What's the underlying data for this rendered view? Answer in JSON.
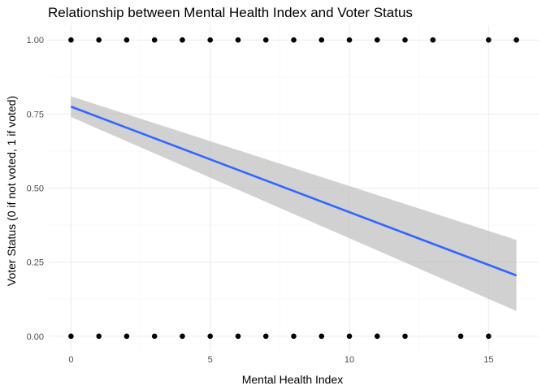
{
  "chart_data": {
    "type": "scatter",
    "title": "Relationship between Mental Health Index and Voter Status",
    "xlabel": "Mental Health Index",
    "ylabel": "Voter Status (0 if not voted, 1 if voted)",
    "xlim": [
      -0.8,
      16.8
    ],
    "ylim": [
      -0.05,
      1.05
    ],
    "x_ticks": [
      0,
      5,
      10,
      15
    ],
    "x_tick_labels": [
      "0",
      "5",
      "10",
      "15"
    ],
    "y_ticks": [
      0,
      0.25,
      0.5,
      0.75,
      1
    ],
    "y_tick_labels": [
      "0.00",
      "0.25",
      "0.50",
      "0.75",
      "1.00"
    ],
    "grid": true,
    "series": [
      {
        "type": "scatter",
        "points": [
          {
            "x": 0,
            "y": 1
          },
          {
            "x": 1,
            "y": 1
          },
          {
            "x": 2,
            "y": 1
          },
          {
            "x": 3,
            "y": 1
          },
          {
            "x": 4,
            "y": 1
          },
          {
            "x": 5,
            "y": 1
          },
          {
            "x": 6,
            "y": 1
          },
          {
            "x": 7,
            "y": 1
          },
          {
            "x": 8,
            "y": 1
          },
          {
            "x": 9,
            "y": 1
          },
          {
            "x": 10,
            "y": 1
          },
          {
            "x": 11,
            "y": 1
          },
          {
            "x": 12,
            "y": 1
          },
          {
            "x": 13,
            "y": 1
          },
          {
            "x": 15,
            "y": 1
          },
          {
            "x": 16,
            "y": 1
          },
          {
            "x": 0,
            "y": 0
          },
          {
            "x": 1,
            "y": 0
          },
          {
            "x": 2,
            "y": 0
          },
          {
            "x": 3,
            "y": 0
          },
          {
            "x": 4,
            "y": 0
          },
          {
            "x": 5,
            "y": 0
          },
          {
            "x": 6,
            "y": 0
          },
          {
            "x": 7,
            "y": 0
          },
          {
            "x": 8,
            "y": 0
          },
          {
            "x": 9,
            "y": 0
          },
          {
            "x": 10,
            "y": 0
          },
          {
            "x": 11,
            "y": 0
          },
          {
            "x": 12,
            "y": 0
          },
          {
            "x": 14,
            "y": 0
          },
          {
            "x": 15,
            "y": 0
          }
        ],
        "color": "#000000"
      },
      {
        "type": "line",
        "method": "linear regression fit",
        "x": [
          0,
          16
        ],
        "y": [
          0.775,
          0.205
        ],
        "ci_lower": [
          0.74,
          0.085
        ],
        "ci_upper": [
          0.81,
          0.325
        ],
        "color": "#3366ff",
        "ci_color": "#bebebe"
      }
    ]
  }
}
